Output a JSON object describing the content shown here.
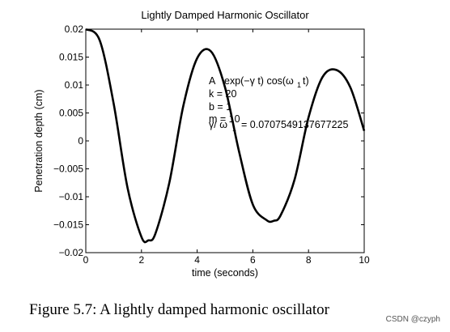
{
  "chart_data": {
    "type": "line",
    "title": "Lightly Damped Harmonic Oscillator",
    "xlabel": "time (seconds)",
    "ylabel": "Penetration depth (cm)",
    "xlim": [
      0,
      10
    ],
    "ylim": [
      -0.02,
      0.02
    ],
    "xticks": [
      0,
      2,
      4,
      6,
      8,
      10
    ],
    "yticks": [
      0.02,
      0.015,
      0.01,
      0.005,
      0,
      -0.005,
      -0.01,
      -0.015,
      -0.02
    ],
    "ytick_labels": [
      "0.02",
      "0.015",
      "0.01",
      "0.005",
      "0",
      "−0.005",
      "−0.01",
      "−0.015",
      "−0.02"
    ],
    "grid": false,
    "series": [
      {
        "x": [
          0,
          0.5,
          1,
          1.5,
          2,
          2.25,
          2.5,
          3,
          3.5,
          4,
          4.5,
          5,
          5.5,
          6,
          6.5,
          6.75,
          7,
          7.5,
          8,
          8.5,
          9,
          9.5,
          10
        ],
        "values": [
          0.02,
          0.018,
          0.0067,
          -0.0084,
          -0.0172,
          -0.0178,
          -0.0166,
          -0.0075,
          0.0062,
          0.0148,
          0.016,
          0.0096,
          -0.0018,
          -0.0114,
          -0.0142,
          -0.0143,
          -0.0133,
          -0.0069,
          0.0042,
          0.0114,
          0.0127,
          0.0096,
          0.0018
        ]
      }
    ],
    "annotations": {
      "formula_a": "A",
      "formula_b": "exp(−γ t) cos(ω",
      "formula_b_sub": "1",
      "formula_c": " t)",
      "k": "k = 20",
      "b": "b = 1",
      "m": "m = 10",
      "gamma_a": "γ/ ω",
      "gamma_sub": "1",
      "gamma_b": "= 0.0707549137677225"
    }
  },
  "caption": "Figure 5.7: A lightly damped harmonic oscillator",
  "watermark": "CSDN @czyph"
}
